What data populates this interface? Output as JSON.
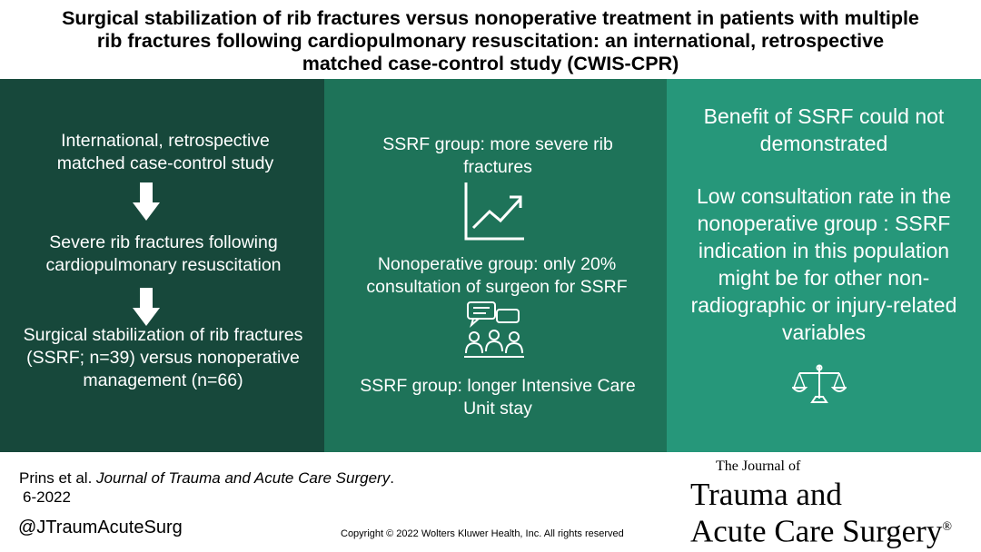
{
  "title": {
    "line1": "Surgical stabilization of rib fractures versus nonoperative treatment in patients with multiple",
    "line2": "rib fractures following cardiopulmonary resuscitation: an international, retrospective",
    "line3": "matched case-control study (CWIS-CPR)"
  },
  "panel1": {
    "study_design": "International, retrospective matched case-control study",
    "population": "Severe rib fractures following cardiopulmonary resuscitation",
    "intervention": "Surgical stabilization of rib fractures (SSRF; n=39) versus nonoperative management (n=66)"
  },
  "panel2": {
    "finding1": "SSRF group: more severe rib fractures",
    "finding2": "Nonoperative group: only 20% consultation of surgeon for SSRF",
    "finding3": "SSRF group: longer Intensive Care Unit stay"
  },
  "panel3": {
    "conclusion1": "Benefit of SSRF could not demonstrated",
    "conclusion2": "Low consultation rate in the nonoperative group : SSRF indication in this population might be for other non-radiographic or injury-related variables"
  },
  "footer": {
    "citation_authors": "Prins et al. ",
    "citation_journal": "Journal of Trauma and Acute Care Surgery",
    "citation_end": ".",
    "date": "6-2022",
    "handle": "@JTraumAcuteSurg",
    "copyright": "Copyright © 2022  Wolters Kluwer Health, Inc. All rights reserved"
  },
  "logo": {
    "small": "The Journal of",
    "line1": "Trauma and",
    "line2": "Acute Care Surgery",
    "reg": "®"
  },
  "colors": {
    "panel1": "#17483b",
    "panel2": "#1e7359",
    "panel3": "#26977a"
  }
}
